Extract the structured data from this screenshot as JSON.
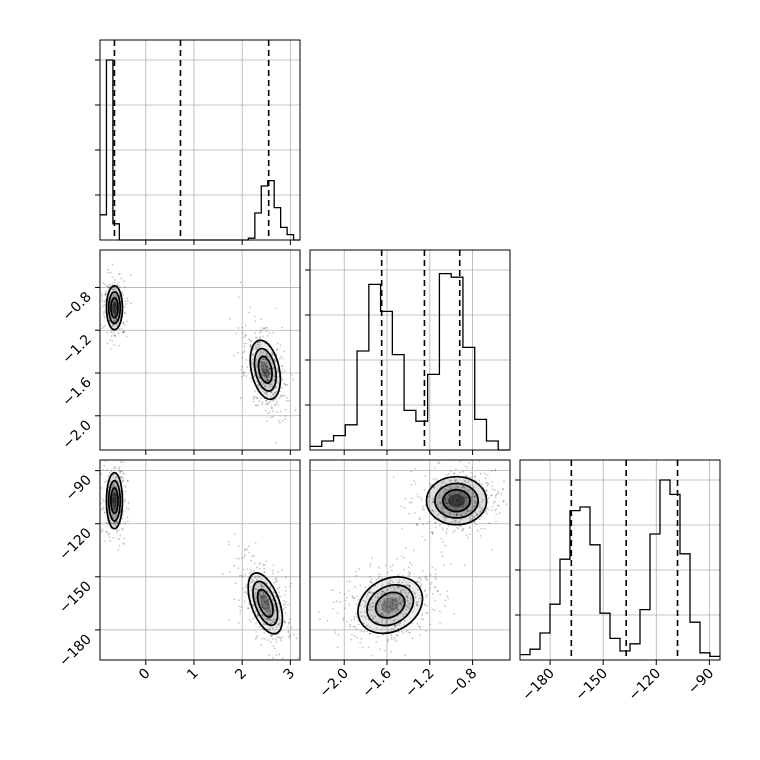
{
  "chart_data": {
    "type": "corner",
    "parameters": [
      {
        "range": [
          -0.95,
          3.2
        ],
        "ticks": [
          0,
          1,
          2,
          3
        ],
        "tick_labels": [
          "0",
          "1",
          "2",
          "3"
        ],
        "quantiles": [
          -0.65,
          0.72,
          2.55
        ],
        "histogram": [
          0.14,
          1.0,
          0.09,
          0,
          0,
          0,
          0,
          0,
          0,
          0,
          0,
          0,
          0,
          0,
          0,
          0,
          0,
          0,
          0,
          0,
          0,
          0,
          0,
          0.01,
          0.15,
          0.3,
          0.33,
          0.18,
          0.07,
          0.03,
          0.0
        ]
      },
      {
        "range": [
          -2.32,
          -0.45
        ],
        "ticks": [
          -2.0,
          -1.6,
          -1.2,
          -0.8
        ],
        "tick_labels": [
          "−2.0",
          "−1.6",
          "−1.2",
          "−0.8"
        ],
        "quantiles": [
          -1.65,
          -1.25,
          -0.92
        ],
        "histogram": [
          0.02,
          0.05,
          0.08,
          0.14,
          0.55,
          0.92,
          0.77,
          0.53,
          0.22,
          0.16,
          0.42,
          0.98,
          0.96,
          0.57,
          0.17,
          0.05,
          0.0
        ]
      },
      {
        "range": [
          -197,
          -84
        ],
        "ticks": [
          -180,
          -150,
          -120,
          -90
        ],
        "tick_labels": [
          "−180",
          "−150",
          "−120",
          "−90"
        ],
        "quantiles": [
          -168,
          -137,
          -108
        ],
        "histogram": [
          0.03,
          0.06,
          0.15,
          0.31,
          0.56,
          0.83,
          0.85,
          0.64,
          0.26,
          0.12,
          0.05,
          0.09,
          0.28,
          0.7,
          1.0,
          0.92,
          0.59,
          0.21,
          0.04,
          0.02
        ]
      }
    ],
    "modes": [
      {
        "p0": -0.65,
        "p1": -0.99,
        "p2": -107,
        "density": 1.0
      },
      {
        "p0": 2.48,
        "p1": -1.57,
        "p2": -165,
        "density": 0.6
      }
    ],
    "mode_p1_p2": [
      {
        "p1": -1.57,
        "p2": -166,
        "density": 0.55
      },
      {
        "p1": -0.95,
        "p2": -107,
        "density": 1.0
      }
    ]
  }
}
